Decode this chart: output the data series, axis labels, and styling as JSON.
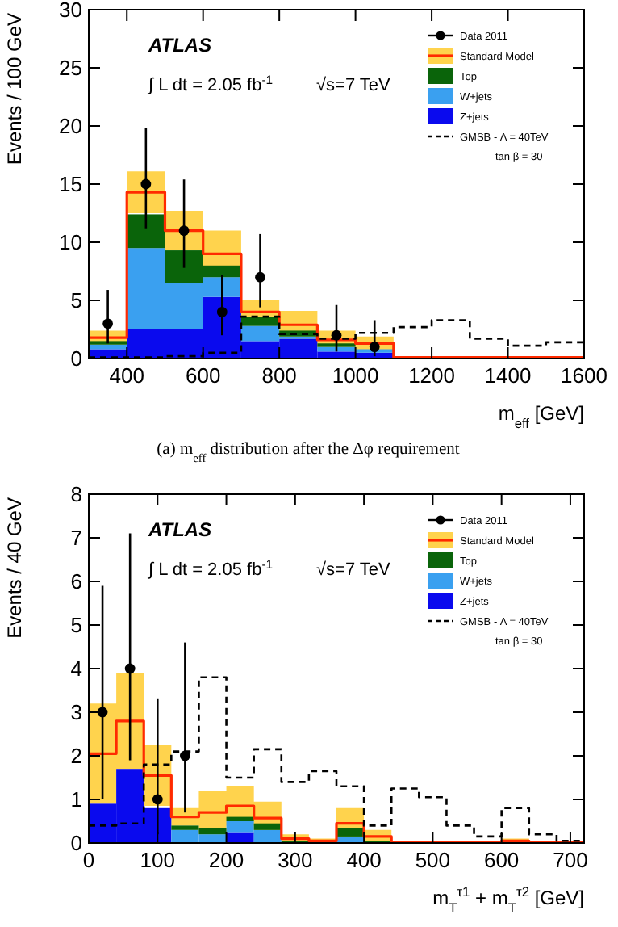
{
  "chart_data": [
    {
      "type": "bar",
      "xlabel": "m$_{eff}$ [GeV]",
      "ylabel": "Events / 100 GeV",
      "x": [
        350,
        450,
        550,
        650,
        750,
        850,
        950,
        1050,
        1150,
        1250,
        1350,
        1450,
        1550
      ],
      "xlim": [
        300,
        1600
      ],
      "xticks": [
        400,
        600,
        800,
        1000,
        1200,
        1400,
        1600
      ],
      "ylim": [
        0,
        30
      ],
      "yticks": [
        0,
        5,
        10,
        15,
        20,
        25,
        30
      ],
      "stacked": true,
      "legend": "top right",
      "annotations": [
        "ATLAS",
        "∫ L dt = 2.05 fb$^{-1}$",
        "√s=7 TeV",
        "tan β = 30",
        "(a)  m$_{eff}$ distribution after the Δφ requirement"
      ],
      "series": [
        {
          "name": "Z+jets",
          "color": "#0a0aee",
          "values": [
            0.8,
            2.5,
            2.5,
            5.3,
            1.5,
            1.7,
            0.6,
            0.5,
            0,
            0,
            0,
            0,
            0
          ]
        },
        {
          "name": "W+jets",
          "color": "#3aa0f0",
          "values": [
            0.4,
            7.0,
            4.0,
            1.7,
            1.3,
            0.2,
            0.4,
            0.3,
            0,
            0,
            0,
            0,
            0
          ]
        },
        {
          "name": "Top",
          "color": "#0a640a",
          "values": [
            0.3,
            2.9,
            2.8,
            1.0,
            0.8,
            0.5,
            0.3,
            null,
            0,
            0,
            0,
            0,
            0
          ]
        },
        {
          "name": "Standard Model",
          "type": "step",
          "color": "#ff2a00",
          "x": [
            300,
            400,
            500,
            600,
            700,
            800,
            900,
            1000,
            1100,
            1200,
            1300,
            1400,
            1500,
            1600
          ],
          "values": [
            1.8,
            14.3,
            11.0,
            9.0,
            4.0,
            2.9,
            1.6,
            1.3,
            0.1,
            0.1,
            0.1,
            0.1,
            0.1,
            0.1
          ],
          "lower": [
            1.2,
            12.5,
            9.3,
            7.0,
            3.0,
            1.7,
            0.8,
            0.7,
            0,
            0,
            0,
            0,
            0,
            0
          ],
          "upper": [
            2.4,
            16.1,
            12.7,
            11.0,
            5.0,
            4.1,
            2.4,
            1.9,
            0.2,
            0.2,
            0.2,
            0.2,
            0.2,
            0.2
          ]
        },
        {
          "name": "GMSB - Λ = 40TeV",
          "type": "step",
          "color": "#000000",
          "line_style": "dashed",
          "x": [
            300,
            400,
            500,
            600,
            700,
            800,
            900,
            1000,
            1100,
            1200,
            1300,
            1400,
            1500,
            1600
          ],
          "values": [
            0.1,
            0.1,
            0.2,
            0.5,
            3.6,
            2.1,
            1.7,
            2.2,
            2.7,
            3.3,
            1.7,
            1.1,
            1.4,
            1.4
          ]
        },
        {
          "name": "Data 2011",
          "type": "scatter",
          "color": "#000000",
          "marker": "circle",
          "x": [
            350,
            450,
            550,
            650,
            750,
            950,
            1050
          ],
          "values": [
            3,
            15,
            11,
            4,
            7,
            2,
            1
          ],
          "errors": [
            [
              1.3,
              5.9
            ],
            [
              11.2,
              19.8
            ],
            [
              7.8,
              15.4
            ],
            [
              2.0,
              7.2
            ],
            [
              4.4,
              10.7
            ],
            [
              0.6,
              4.6
            ],
            [
              0.2,
              3.3
            ]
          ]
        }
      ]
    },
    {
      "type": "bar",
      "xlabel": "m$_{T}$$^{τ1}$ + m$_{T}$$^{τ2}$ [GeV]",
      "ylabel": "Events / 40 GeV",
      "x": [
        20,
        60,
        100,
        140,
        180,
        220,
        260,
        300,
        340,
        380,
        420,
        460,
        500,
        540,
        580,
        620,
        660,
        700
      ],
      "xlim": [
        0,
        720
      ],
      "xticks": [
        0,
        100,
        200,
        300,
        400,
        500,
        600,
        700
      ],
      "ylim": [
        0,
        8
      ],
      "yticks": [
        0,
        1,
        2,
        3,
        4,
        5,
        6,
        7,
        8
      ],
      "stacked": true,
      "legend": "top right",
      "annotations": [
        "ATLAS",
        "∫ L dt = 2.05 fb$^{-1}$",
        "√s=7 TeV",
        "tan β = 30"
      ],
      "series": [
        {
          "name": "Z+jets",
          "color": "#0a0aee",
          "values": [
            0.9,
            1.7,
            0.8,
            0,
            0,
            0.25,
            0,
            0,
            0,
            0,
            0,
            0,
            0,
            0,
            0,
            0,
            0,
            0
          ]
        },
        {
          "name": "W+jets",
          "color": "#3aa0f0",
          "values": [
            0,
            0,
            0,
            0.3,
            0.2,
            0.25,
            0.3,
            0,
            0,
            0.15,
            0,
            0,
            0,
            0,
            0,
            0,
            0,
            0
          ]
        },
        {
          "name": "Top",
          "color": "#0a640a",
          "values": [
            0,
            0,
            0,
            0.1,
            0.15,
            0.1,
            0.15,
            0.05,
            0,
            0.2,
            0.05,
            0,
            0,
            0,
            0,
            0,
            0,
            0
          ]
        },
        {
          "name": "Standard Model",
          "type": "step",
          "color": "#ff2a00",
          "x": [
            0,
            40,
            80,
            120,
            160,
            200,
            240,
            280,
            320,
            360,
            400,
            440,
            480,
            520,
            560,
            600,
            640,
            680,
            720
          ],
          "values": [
            2.05,
            2.8,
            1.55,
            0.6,
            0.7,
            0.85,
            0.57,
            0.1,
            0.05,
            0.45,
            0.15,
            0.02,
            0.02,
            0.02,
            0.02,
            0.05,
            0.02,
            0.02,
            0.02
          ],
          "lower": [
            0.9,
            1.7,
            0.85,
            0.4,
            0.25,
            0.4,
            0.2,
            0,
            0,
            0.1,
            0,
            0,
            0,
            0,
            0,
            0,
            0,
            0,
            0
          ],
          "upper": [
            3.2,
            3.9,
            2.25,
            0.8,
            1.2,
            1.3,
            0.95,
            0.2,
            0.1,
            0.8,
            0.3,
            0.05,
            0.05,
            0.05,
            0.05,
            0.1,
            0.05,
            0.05,
            0.05
          ]
        },
        {
          "name": "GMSB - Λ = 40TeV",
          "type": "step",
          "color": "#000000",
          "line_style": "dashed",
          "x": [
            0,
            40,
            80,
            120,
            160,
            200,
            240,
            280,
            320,
            360,
            400,
            440,
            480,
            520,
            560,
            600,
            640,
            680,
            720
          ],
          "values": [
            0.4,
            0.45,
            1.8,
            2.1,
            3.8,
            1.5,
            2.15,
            1.4,
            1.65,
            1.3,
            0.4,
            1.25,
            1.05,
            0.4,
            0.15,
            0.8,
            0.2,
            0.05,
            0.05
          ]
        },
        {
          "name": "Data 2011",
          "type": "scatter",
          "color": "#000000",
          "marker": "circle",
          "x": [
            20,
            60,
            100,
            140
          ],
          "values": [
            3,
            4,
            1,
            2
          ],
          "errors": [
            [
              1.0,
              5.9
            ],
            [
              1.9,
              7.1
            ],
            [
              0.2,
              3.3
            ],
            [
              0.7,
              4.6
            ]
          ]
        }
      ]
    }
  ]
}
